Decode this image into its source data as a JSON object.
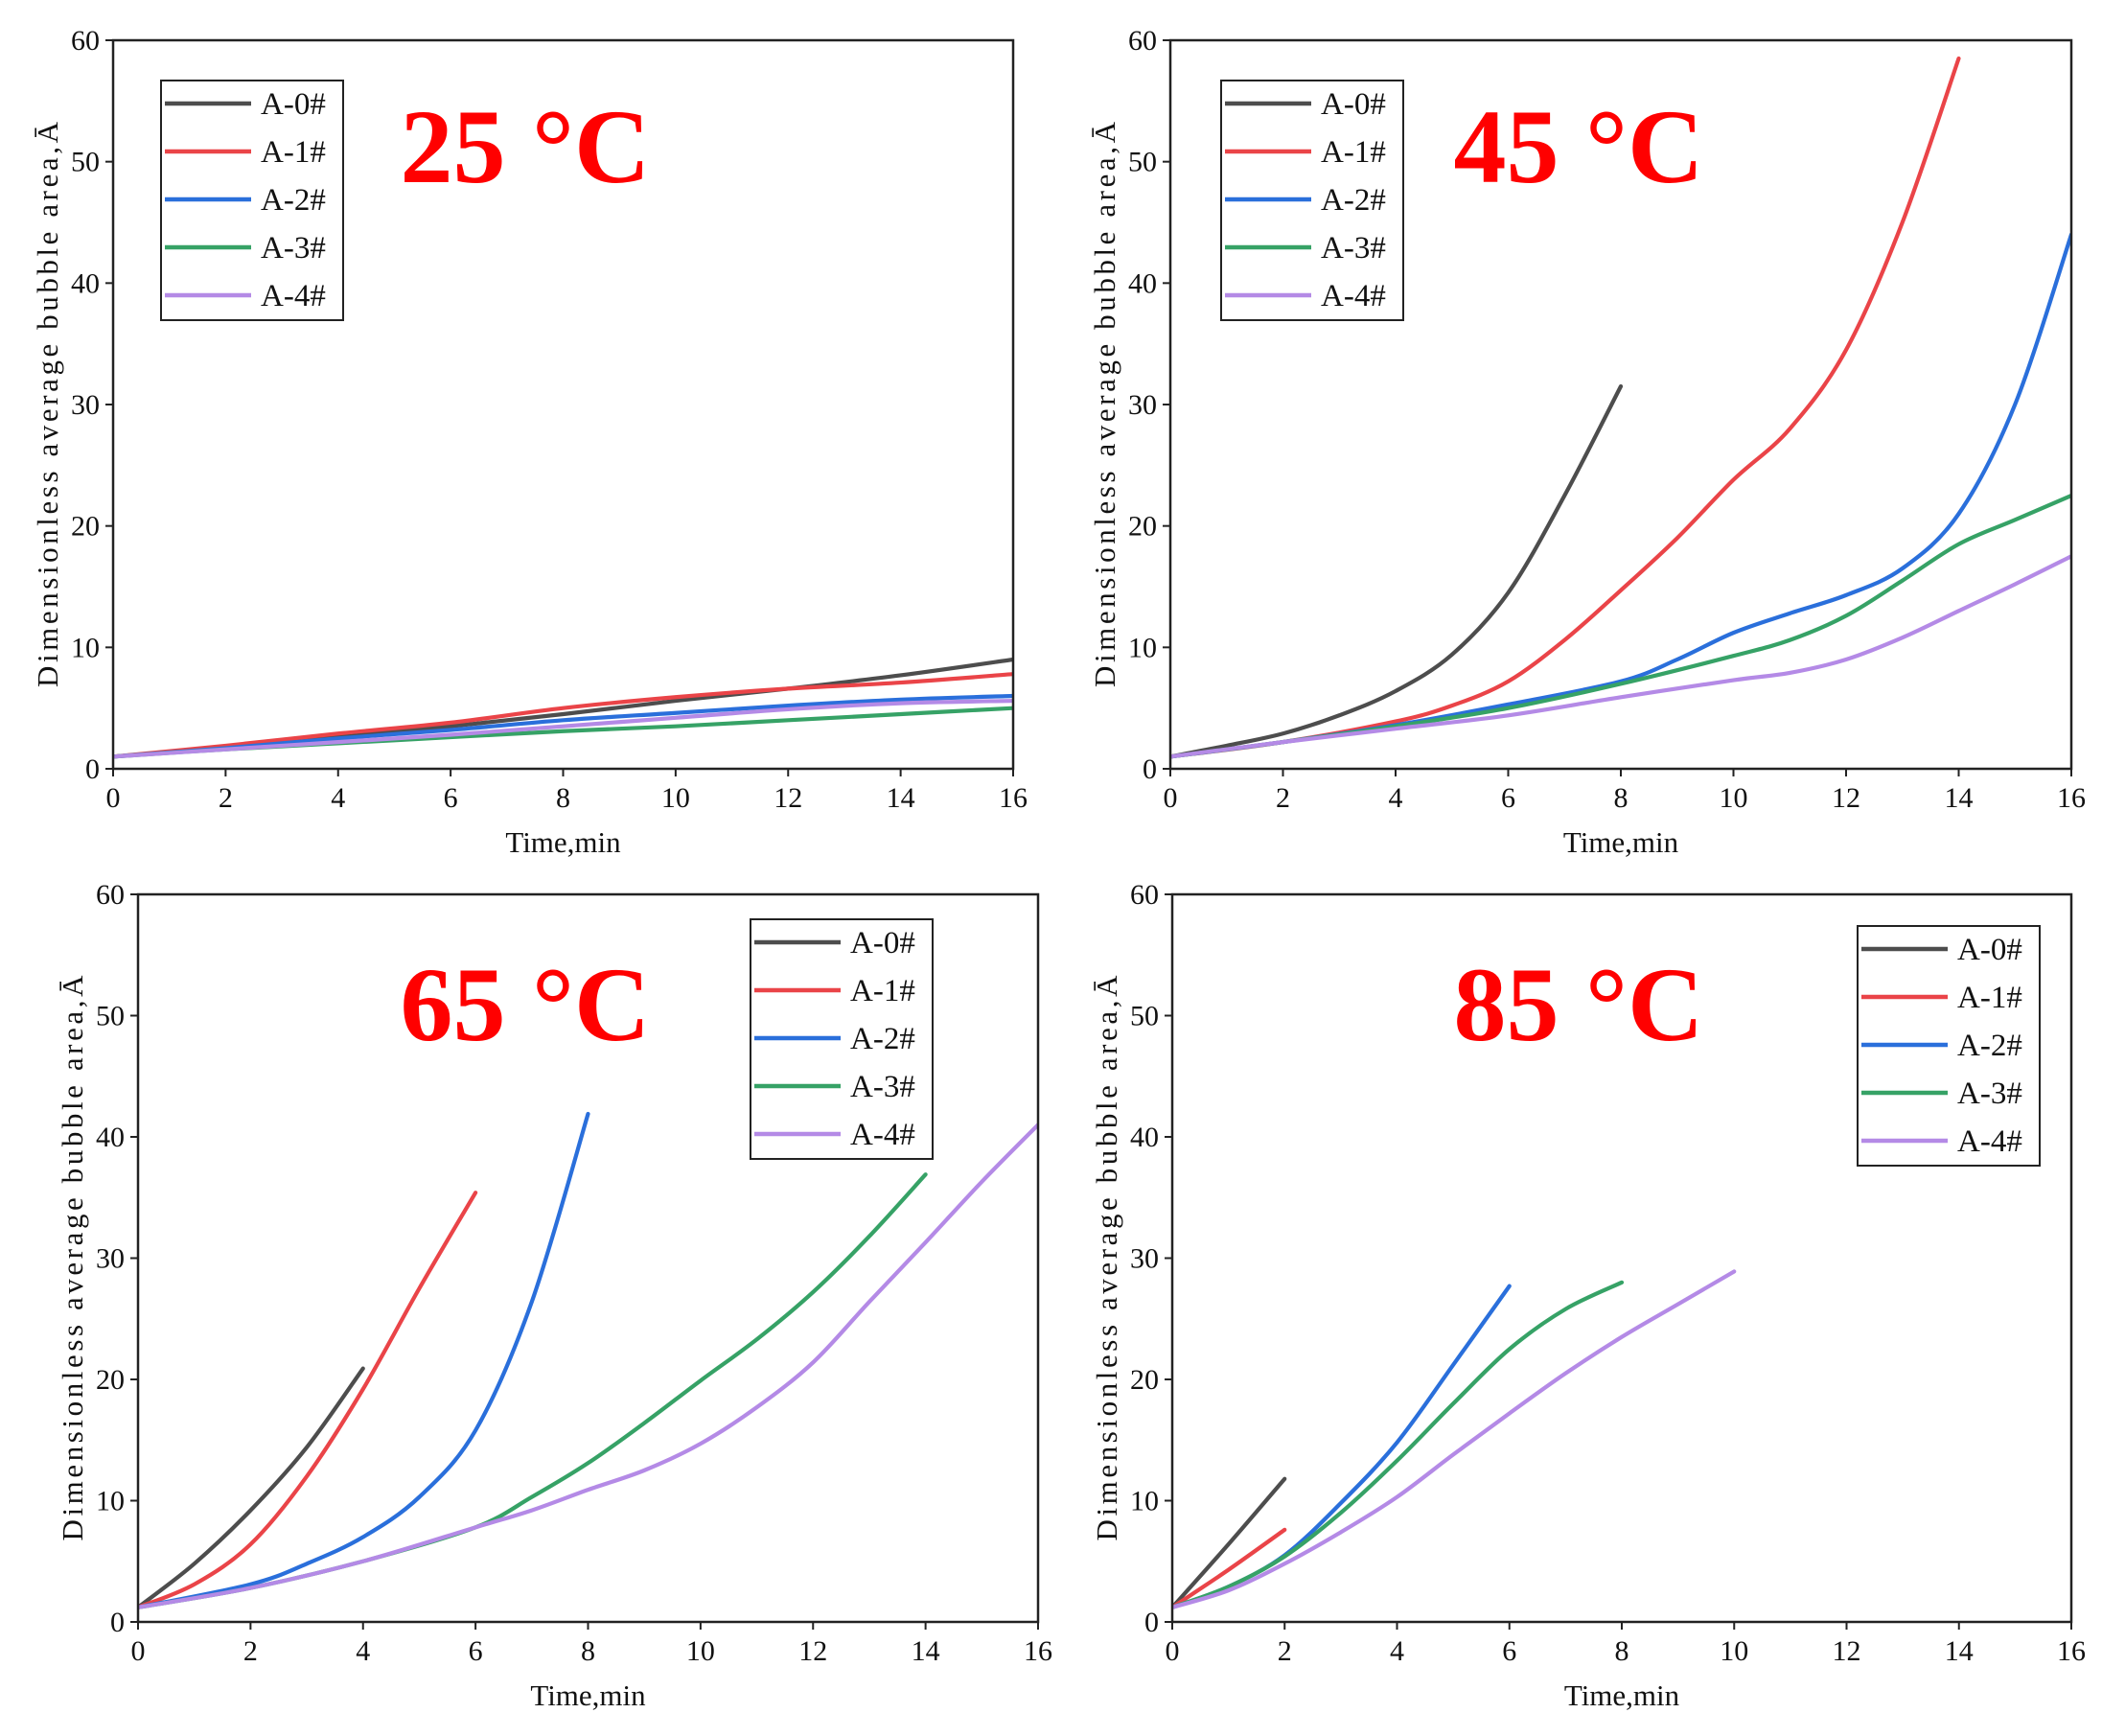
{
  "chart_data": [
    {
      "type": "line",
      "title": "25 °C",
      "xlabel": "Time,min",
      "ylabel": "Dimensionless average bubble area,Ā",
      "xlim": [
        0,
        16
      ],
      "ylim": [
        0,
        60
      ],
      "xticks": [
        0,
        2,
        4,
        6,
        8,
        10,
        12,
        14,
        16
      ],
      "yticks": [
        0,
        10,
        20,
        30,
        40,
        50,
        60
      ],
      "grid": false,
      "legend_position": "top-left",
      "series": [
        {
          "name": "A-0#",
          "color": "#4d4d4d",
          "x": [
            0,
            2,
            4,
            6,
            8,
            10,
            12,
            14,
            16
          ],
          "y": [
            1,
            1.8,
            2.6,
            3.5,
            4.5,
            5.6,
            6.6,
            7.7,
            9.0
          ]
        },
        {
          "name": "A-1#",
          "color": "#ea4448",
          "x": [
            0,
            2,
            4,
            6,
            8,
            10,
            12,
            14,
            16
          ],
          "y": [
            1,
            1.9,
            2.9,
            3.8,
            5.0,
            5.9,
            6.6,
            7.1,
            7.8
          ]
        },
        {
          "name": "A-2#",
          "color": "#2a6fdb",
          "x": [
            0,
            2,
            4,
            6,
            8,
            10,
            12,
            14,
            16
          ],
          "y": [
            1,
            1.7,
            2.5,
            3.2,
            4.0,
            4.6,
            5.2,
            5.7,
            6.0
          ]
        },
        {
          "name": "A-3#",
          "color": "#36a266",
          "x": [
            0,
            2,
            4,
            6,
            8,
            10,
            12,
            14,
            16
          ],
          "y": [
            1,
            1.6,
            2.1,
            2.6,
            3.1,
            3.5,
            4.0,
            4.5,
            5.0
          ]
        },
        {
          "name": "A-4#",
          "color": "#b48ae6",
          "x": [
            0,
            2,
            4,
            6,
            8,
            10,
            12,
            14,
            16
          ],
          "y": [
            1,
            1.6,
            2.2,
            2.8,
            3.5,
            4.2,
            4.9,
            5.4,
            5.6
          ]
        }
      ]
    },
    {
      "type": "line",
      "title": "45 °C",
      "xlabel": "Time,min",
      "ylabel": "Dimensionless average bubble area,Ā",
      "xlim": [
        0,
        16
      ],
      "ylim": [
        0,
        60
      ],
      "xticks": [
        0,
        2,
        4,
        6,
        8,
        10,
        12,
        14,
        16
      ],
      "yticks": [
        0,
        10,
        20,
        30,
        40,
        50,
        60
      ],
      "grid": false,
      "legend_position": "top-left",
      "series": [
        {
          "name": "A-0#",
          "color": "#4d4d4d",
          "x": [
            0,
            1,
            2,
            3,
            4,
            5,
            6,
            7,
            8
          ],
          "y": [
            1,
            1.9,
            2.9,
            4.4,
            6.4,
            9.4,
            14.5,
            22.5,
            31.5
          ]
        },
        {
          "name": "A-1#",
          "color": "#ea4448",
          "x": [
            0,
            2,
            4,
            5,
            6,
            7,
            8,
            9,
            10,
            11,
            12,
            13,
            14
          ],
          "y": [
            1,
            2.2,
            3.9,
            5.2,
            7.2,
            10.6,
            14.7,
            19,
            23.8,
            28,
            34.5,
            45,
            58.5
          ]
        },
        {
          "name": "A-2#",
          "color": "#2a6fdb",
          "x": [
            0,
            2,
            4,
            6,
            8,
            9,
            10,
            11,
            12,
            13,
            14,
            15,
            16
          ],
          "y": [
            1,
            2.2,
            3.6,
            5.3,
            7.2,
            9,
            11.2,
            12.8,
            14.3,
            16.5,
            21,
            30,
            44
          ]
        },
        {
          "name": "A-3#",
          "color": "#36a266",
          "x": [
            0,
            2,
            4,
            6,
            8,
            10,
            11,
            12,
            13,
            14,
            15,
            16
          ],
          "y": [
            1,
            2.2,
            3.5,
            5,
            7,
            9.3,
            10.6,
            12.6,
            15.5,
            18.5,
            20.5,
            22.5
          ]
        },
        {
          "name": "A-4#",
          "color": "#b48ae6",
          "x": [
            0,
            2,
            4,
            6,
            8,
            10,
            11,
            12,
            13,
            14,
            15,
            16
          ],
          "y": [
            1,
            2.2,
            3.3,
            4.4,
            5.9,
            7.3,
            7.9,
            9,
            10.8,
            13,
            15.2,
            17.5
          ]
        }
      ]
    },
    {
      "type": "line",
      "title": "65 °C",
      "xlabel": "Time,min",
      "ylabel": "Dimensionless average bubble area,Ā",
      "xlim": [
        0,
        16
      ],
      "ylim": [
        0,
        60
      ],
      "xticks": [
        0,
        2,
        4,
        6,
        8,
        10,
        12,
        14,
        16
      ],
      "yticks": [
        0,
        10,
        20,
        30,
        40,
        50,
        60
      ],
      "grid": false,
      "legend_position": "top-right",
      "series": [
        {
          "name": "A-0#",
          "color": "#4d4d4d",
          "x": [
            0,
            1,
            2,
            3,
            4
          ],
          "y": [
            1.2,
            4.8,
            9.2,
            14.4,
            20.9
          ]
        },
        {
          "name": "A-1#",
          "color": "#ea4448",
          "x": [
            0,
            1,
            2,
            3,
            4,
            5,
            6
          ],
          "y": [
            1.2,
            3.1,
            6.4,
            12,
            19.2,
            27.5,
            35.4
          ]
        },
        {
          "name": "A-2#",
          "color": "#2a6fdb",
          "x": [
            0,
            2,
            3,
            4,
            5,
            6,
            7,
            8
          ],
          "y": [
            1.2,
            3.1,
            4.8,
            7,
            10.3,
            15.8,
            26.4,
            41.9
          ]
        },
        {
          "name": "A-3#",
          "color": "#36a266",
          "x": [
            0,
            2,
            4,
            6,
            7,
            8,
            9,
            10,
            11,
            12,
            13,
            14
          ],
          "y": [
            1.2,
            2.8,
            5,
            7.8,
            10.3,
            13.1,
            16.4,
            19.9,
            23.3,
            27.2,
            31.8,
            36.9
          ]
        },
        {
          "name": "A-4#",
          "color": "#b48ae6",
          "x": [
            0,
            2,
            4,
            6,
            7,
            8,
            9,
            10,
            11,
            12,
            13,
            14,
            15,
            16
          ],
          "y": [
            1.2,
            2.8,
            5,
            7.8,
            9.2,
            10.9,
            12.5,
            14.7,
            17.7,
            21.4,
            26.4,
            31.3,
            36.3,
            41
          ]
        }
      ]
    },
    {
      "type": "line",
      "title": "85 °C",
      "xlabel": "Time,min",
      "ylabel": "Dimensionless average bubble area,Ā",
      "xlim": [
        0,
        16
      ],
      "ylim": [
        0,
        60
      ],
      "xticks": [
        0,
        2,
        4,
        6,
        8,
        10,
        12,
        14,
        16
      ],
      "yticks": [
        0,
        10,
        20,
        30,
        40,
        50,
        60
      ],
      "grid": false,
      "legend_position": "top-right",
      "series": [
        {
          "name": "A-0#",
          "color": "#4d4d4d",
          "x": [
            0,
            1,
            2
          ],
          "y": [
            1.2,
            6.4,
            11.8
          ]
        },
        {
          "name": "A-1#",
          "color": "#ea4448",
          "x": [
            0,
            1,
            2
          ],
          "y": [
            1.2,
            4.3,
            7.6
          ]
        },
        {
          "name": "A-2#",
          "color": "#2a6fdb",
          "x": [
            0,
            1,
            2,
            3,
            4,
            5,
            6
          ],
          "y": [
            1.2,
            2.9,
            5.5,
            9.8,
            14.8,
            21.2,
            27.7
          ]
        },
        {
          "name": "A-3#",
          "color": "#36a266",
          "x": [
            0,
            1,
            2,
            3,
            4,
            5,
            6,
            7,
            8
          ],
          "y": [
            1.2,
            2.9,
            5.4,
            9,
            13.3,
            18,
            22.5,
            25.8,
            28
          ]
        },
        {
          "name": "A-4#",
          "color": "#b48ae6",
          "x": [
            0,
            1,
            2,
            3,
            4,
            5,
            6,
            7,
            8,
            9,
            10
          ],
          "y": [
            1.2,
            2.6,
            4.8,
            7.4,
            10.3,
            13.8,
            17.2,
            20.5,
            23.5,
            26.2,
            28.9
          ]
        }
      ]
    }
  ]
}
